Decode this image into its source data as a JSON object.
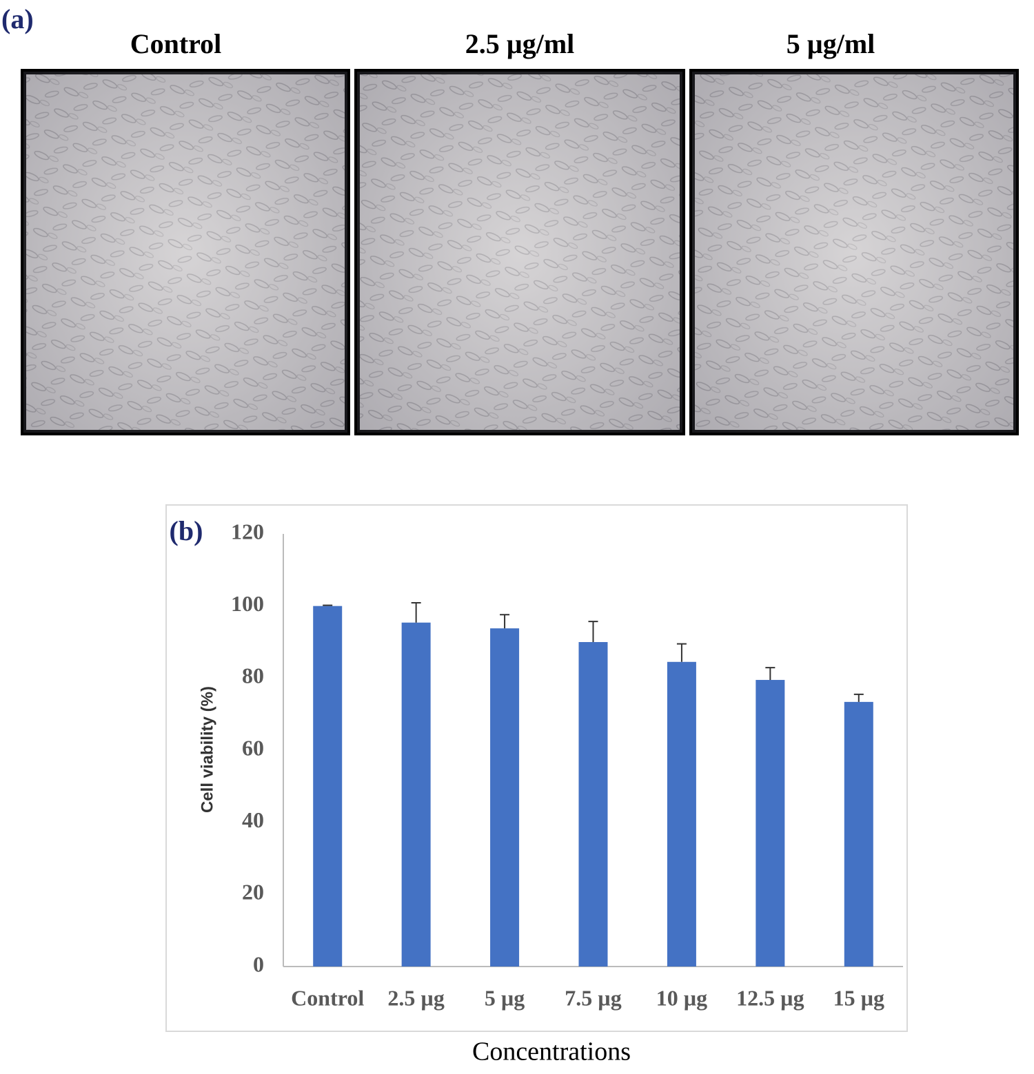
{
  "panel_a": {
    "label": "(a)",
    "images": [
      "Control",
      "2.5 µg/ml",
      "5 µg/ml"
    ]
  },
  "chart_data": {
    "type": "bar",
    "panel_label": "(b)",
    "x_label": "Concentrations",
    "y_label": "Cell viability (%)",
    "categories": [
      "Control",
      "2.5 µg",
      "5 µg",
      "7.5 µg",
      "10 µg",
      "12.5 µg",
      "15 µg"
    ],
    "series": [
      {
        "color": "#4472c4",
        "values": [
          100,
          95.4,
          93.8,
          90.0,
          84.5,
          79.5,
          73.4
        ],
        "errors": [
          0.2,
          5.5,
          3.8,
          5.7,
          5.0,
          3.4,
          2.1
        ]
      }
    ],
    "ylim": [
      0,
      120
    ],
    "yticks": [
      0,
      20,
      40,
      60,
      80,
      100,
      120
    ],
    "grid": false
  }
}
